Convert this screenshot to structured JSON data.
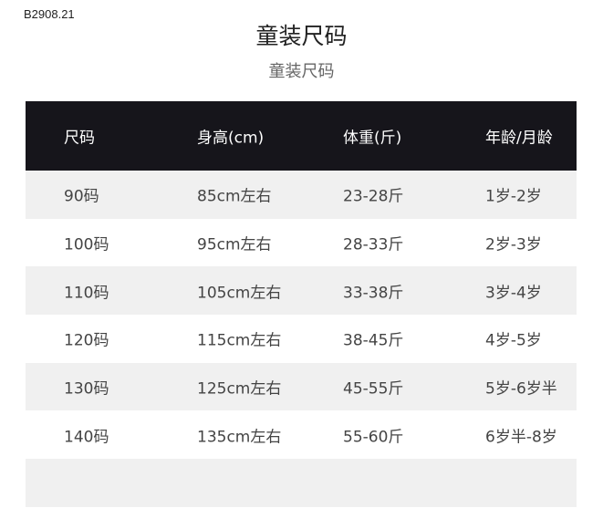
{
  "code": "B2908.21",
  "title": "童装尺码",
  "subtitle": "童装尺码",
  "table": {
    "headers": [
      "尺码",
      "身高(cm)",
      "体重(斤)",
      "年龄/月龄"
    ],
    "rows": [
      [
        "90码",
        "85cm左右",
        "23-28斤",
        "1岁-2岁"
      ],
      [
        "100码",
        "95cm左右",
        "28-33斤",
        "2岁-3岁"
      ],
      [
        "110码",
        "105cm左右",
        "33-38斤",
        "3岁-4岁"
      ],
      [
        "120码",
        "115cm左右",
        "38-45斤",
        "4岁-5岁"
      ],
      [
        "130码",
        "125cm左右",
        "45-55斤",
        "5岁-6岁半"
      ],
      [
        "140码",
        "135cm左右",
        "55-60斤",
        "6岁半-8岁"
      ]
    ]
  },
  "colors": {
    "header_bg": "#16151b",
    "alt_row": "#f0f0f0"
  }
}
